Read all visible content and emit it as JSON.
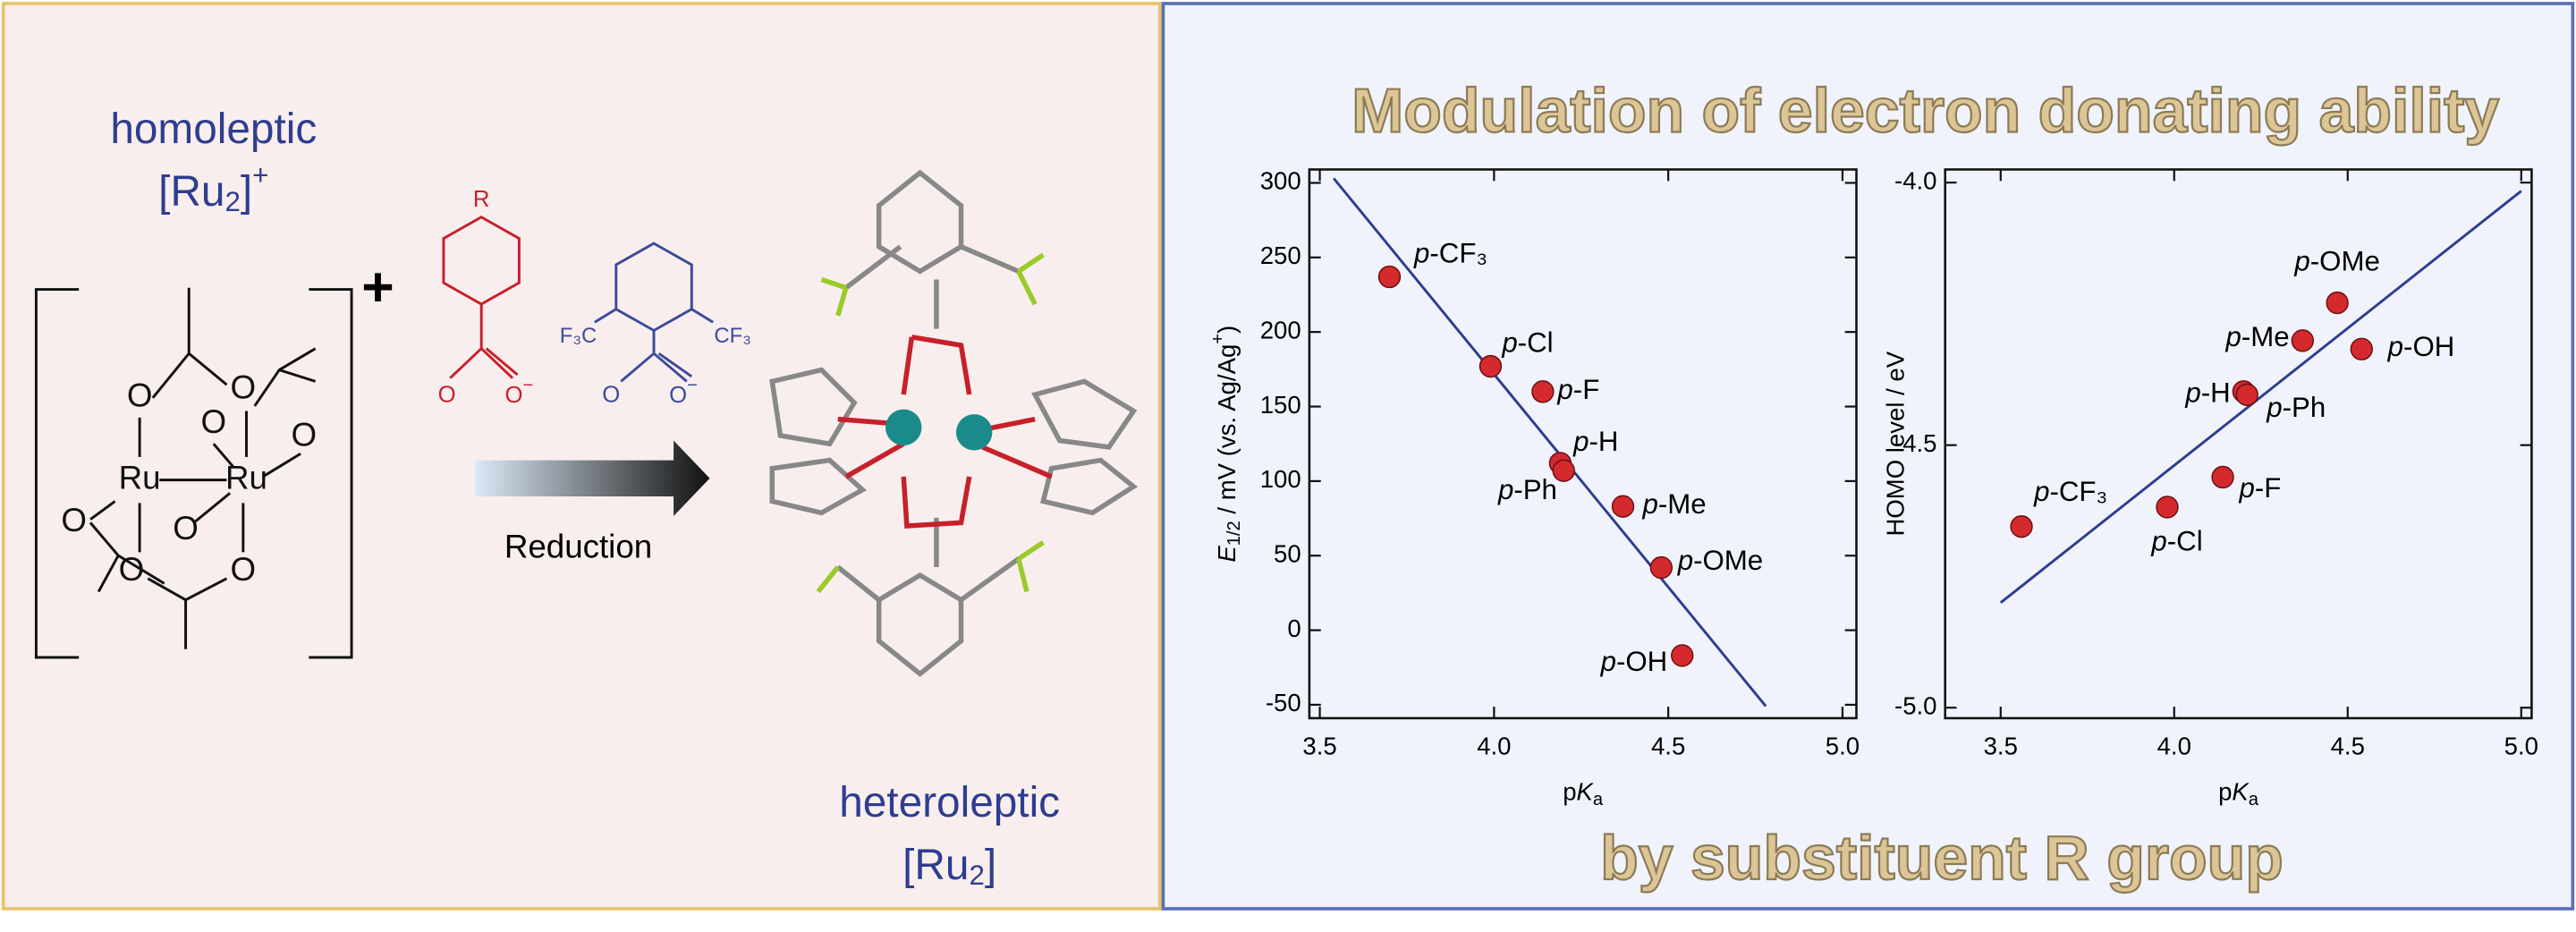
{
  "title_top": "Modulation of electron donating ability",
  "title_bottom": "by substituent R group",
  "left_panel": {
    "homoleptic": "homoleptic",
    "homoleptic_formula": [
      "[Ru",
      "2",
      "]",
      "+"
    ],
    "plus": "+",
    "structure_atoms": [
      "O",
      "O",
      "O",
      "O",
      "O",
      "O",
      "O",
      "O",
      "Ru",
      "Ru"
    ],
    "ligand_a": {
      "substituent": "R",
      "atoms": [
        "O",
        "O"
      ],
      "charge": "−"
    },
    "ligand_b": {
      "groups": [
        "F₃C",
        "CF₃"
      ],
      "atoms": [
        "O",
        "O"
      ],
      "charge": "−"
    },
    "reduction": "Reduction",
    "heteroleptic": "heteroleptic",
    "heteroleptic_formula": [
      "[Ru",
      "2",
      "]"
    ]
  },
  "chart_data": [
    {
      "type": "scatter",
      "labels": [
        "p-CF₃",
        "p-Cl",
        "p-F",
        "p-H",
        "p-Ph",
        "p-Me",
        "p-OMe",
        "p-OH"
      ],
      "x": [
        3.7,
        3.99,
        4.14,
        4.19,
        4.2,
        4.37,
        4.48,
        4.54
      ],
      "values": [
        237,
        177,
        160,
        112,
        107,
        83,
        42,
        -17
      ],
      "color": "#d42a2e",
      "fit_line": {
        "x": [
          3.54,
          4.78
        ],
        "y": [
          303,
          -51
        ],
        "color": "#2e3d8f"
      },
      "xlim": [
        3.47,
        5.04
      ],
      "ylim": [
        -59,
        309
      ],
      "xticks": [
        3.5,
        {
          "value": 4,
          "label": "4.0"
        },
        4.5,
        {
          "value": 5,
          "label": "5.0"
        }
      ],
      "yticks": [
        -50,
        0,
        50,
        100,
        150,
        200,
        250,
        300
      ],
      "x_label": [
        "p",
        "K",
        "a"
      ],
      "y_label": [
        "E",
        "1/2",
        " / mV (vs. Ag/Ag",
        "+",
        ")"
      ]
    },
    {
      "type": "scatter",
      "labels": [
        "p-CF₃",
        "p-Cl",
        "p-F",
        "p-H",
        "p-Ph",
        "p-Me",
        "p-OMe",
        "p-OH"
      ],
      "x": [
        3.56,
        3.98,
        4.14,
        4.2,
        4.21,
        4.37,
        4.47,
        4.54
      ],
      "values": [
        -4.655,
        -4.618,
        -4.561,
        -4.398,
        -4.404,
        -4.301,
        -4.229,
        -4.317
      ],
      "color": "#d42a2e",
      "fit_line": {
        "x": [
          3.5,
          5.0
        ],
        "y": [
          -4.8,
          -4.016
        ],
        "color": "#2e3d8f"
      },
      "xlim": [
        3.34,
        5.03
      ],
      "ylim": [
        -5.02,
        -3.975
      ],
      "xticks": [
        3.5,
        {
          "value": 4,
          "label": "4.0"
        },
        4.5,
        {
          "value": 5,
          "label": "5.0"
        }
      ],
      "yticks": [
        {
          "value": -4,
          "label": "-4.0"
        },
        -4.5,
        {
          "value": -5,
          "label": "-5.0"
        }
      ],
      "x_label": [
        "p",
        "K",
        "a"
      ],
      "y_label": [
        "HOMO level / eV"
      ]
    }
  ]
}
